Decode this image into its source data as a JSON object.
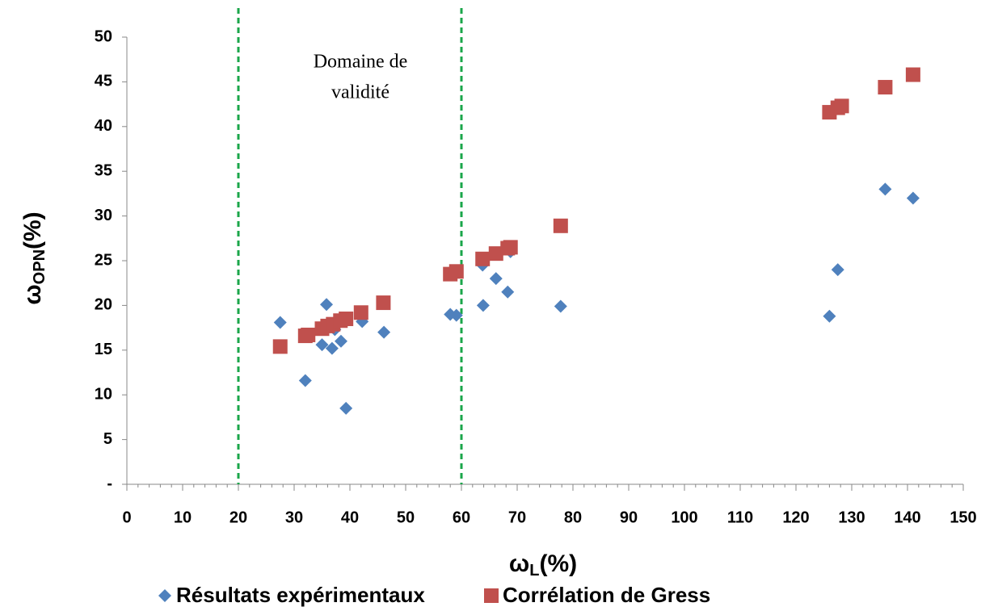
{
  "chart_data": {
    "type": "scatter",
    "xlabel": {
      "main": "ω",
      "sub": "L",
      "unit": "(%)"
    },
    "ylabel": {
      "main": "ω",
      "sub": "OPN",
      "unit": "(%)"
    },
    "annotation": [
      "Domaine de",
      "validité"
    ],
    "vlines": [
      20,
      60
    ],
    "vline_color": "#1aa64a",
    "xlim": [
      0,
      150
    ],
    "xticks": [
      0,
      10,
      20,
      30,
      40,
      50,
      60,
      70,
      80,
      90,
      100,
      110,
      120,
      130,
      140,
      150
    ],
    "ylim": [
      0,
      50
    ],
    "yticks": [
      {
        "value": 0,
        "label": "-"
      },
      5,
      10,
      15,
      20,
      25,
      30,
      35,
      40,
      45,
      50
    ],
    "legend": "bottom",
    "series": [
      {
        "name": "Résultats expérimentaux",
        "color": "#4f81bd",
        "marker": "diamond",
        "x": [
          27.5,
          32,
          32.5,
          35,
          35.8,
          36.8,
          37.3,
          38.4,
          39.3,
          42.2,
          46.1,
          58,
          59.1,
          63.8,
          63.9,
          66.2,
          68.3,
          68.8,
          77.8,
          126,
          127.5,
          136,
          141
        ],
        "values": [
          18.1,
          11.6,
          16.5,
          15.6,
          20.1,
          15.2,
          17.3,
          16.0,
          8.5,
          18.2,
          17.0,
          19.0,
          18.9,
          24.5,
          20.0,
          23.0,
          21.5,
          26.0,
          19.9,
          18.8,
          24.0,
          33.0,
          32.0
        ]
      },
      {
        "name": "Corrélation de Gress",
        "color": "#c0504d",
        "marker": "square",
        "x": [
          27.5,
          32,
          32.5,
          35,
          36,
          37,
          38.3,
          39.3,
          42,
          46,
          58,
          59.1,
          63.8,
          66.2,
          68.3,
          68.8,
          77.8,
          126,
          127.5,
          128.2,
          136,
          141
        ],
        "values": [
          15.4,
          16.6,
          16.7,
          17.4,
          17.7,
          17.9,
          18.3,
          18.5,
          19.2,
          20.3,
          23.5,
          23.8,
          25.2,
          25.8,
          26.4,
          26.5,
          28.9,
          41.6,
          42.1,
          42.3,
          44.4,
          45.8
        ]
      }
    ]
  }
}
